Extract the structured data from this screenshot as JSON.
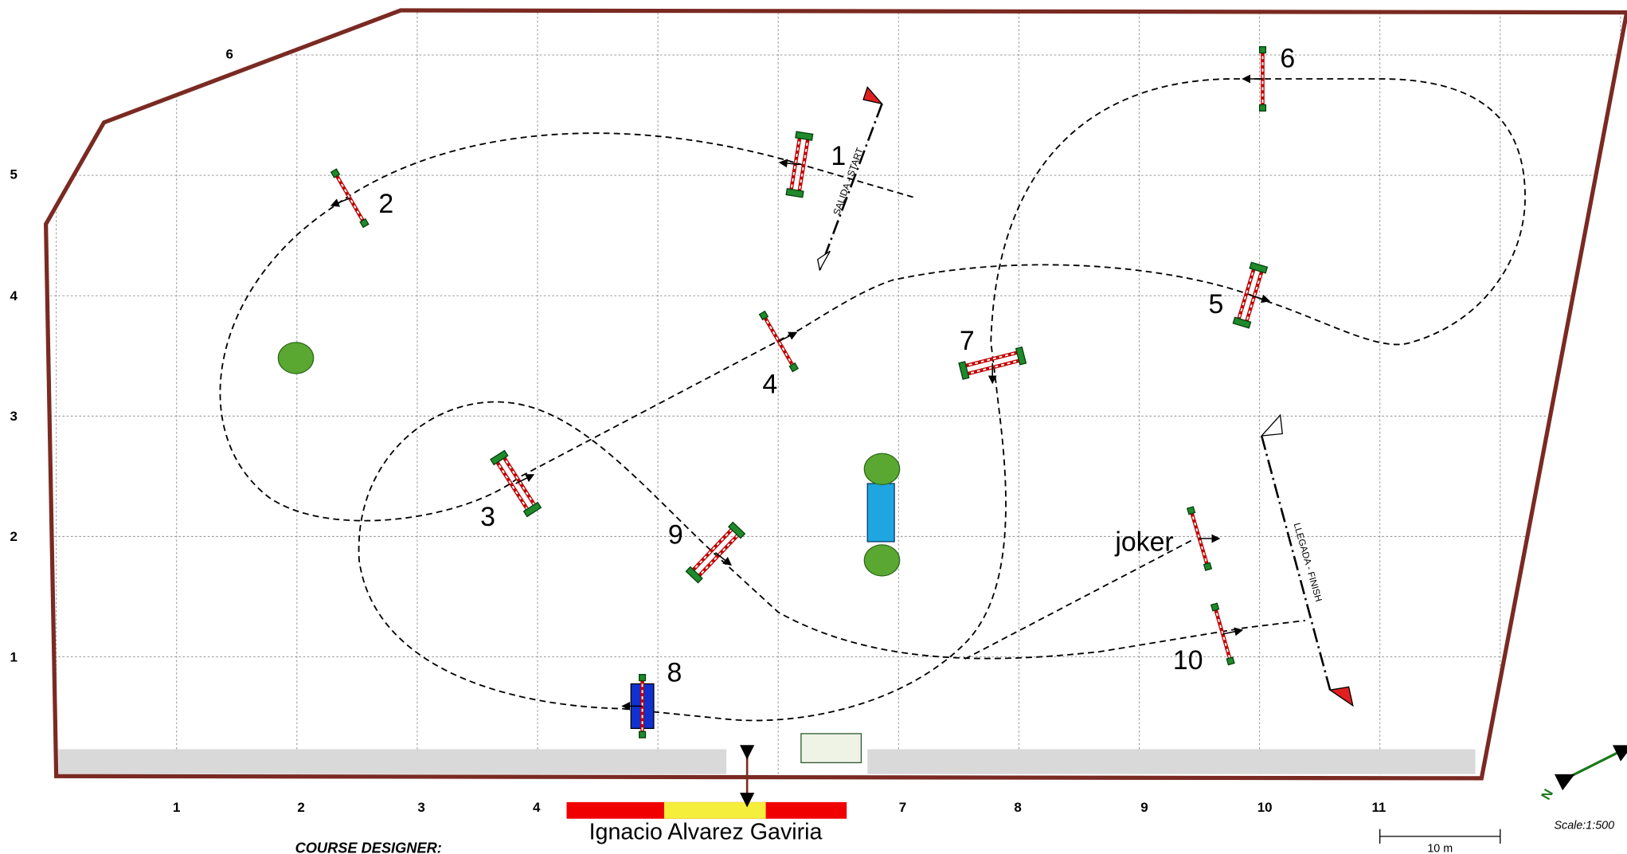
{
  "grid": {
    "x_labels": [
      "1",
      "2",
      "3",
      "4",
      "7",
      "8",
      "9",
      "10",
      "11"
    ],
    "y_labels": [
      "5",
      "4",
      "3",
      "2",
      "1"
    ],
    "corner_label": "6"
  },
  "fences": [
    {
      "label": "1"
    },
    {
      "label": "2"
    },
    {
      "label": "3"
    },
    {
      "label": "4"
    },
    {
      "label": "5"
    },
    {
      "label": "6"
    },
    {
      "label": "7"
    },
    {
      "label": "8"
    },
    {
      "label": "9"
    },
    {
      "label": "10"
    },
    {
      "label": "joker"
    }
  ],
  "start_label": "SALIDA - START",
  "finish_label": "LLEGADA - FINISH",
  "designer": {
    "heading": "COURSE DESIGNER:",
    "name": "Ignacio Alvarez Gaviria"
  },
  "scale": {
    "label": "Scale:1:500",
    "bar": "10 m"
  },
  "north": "N"
}
